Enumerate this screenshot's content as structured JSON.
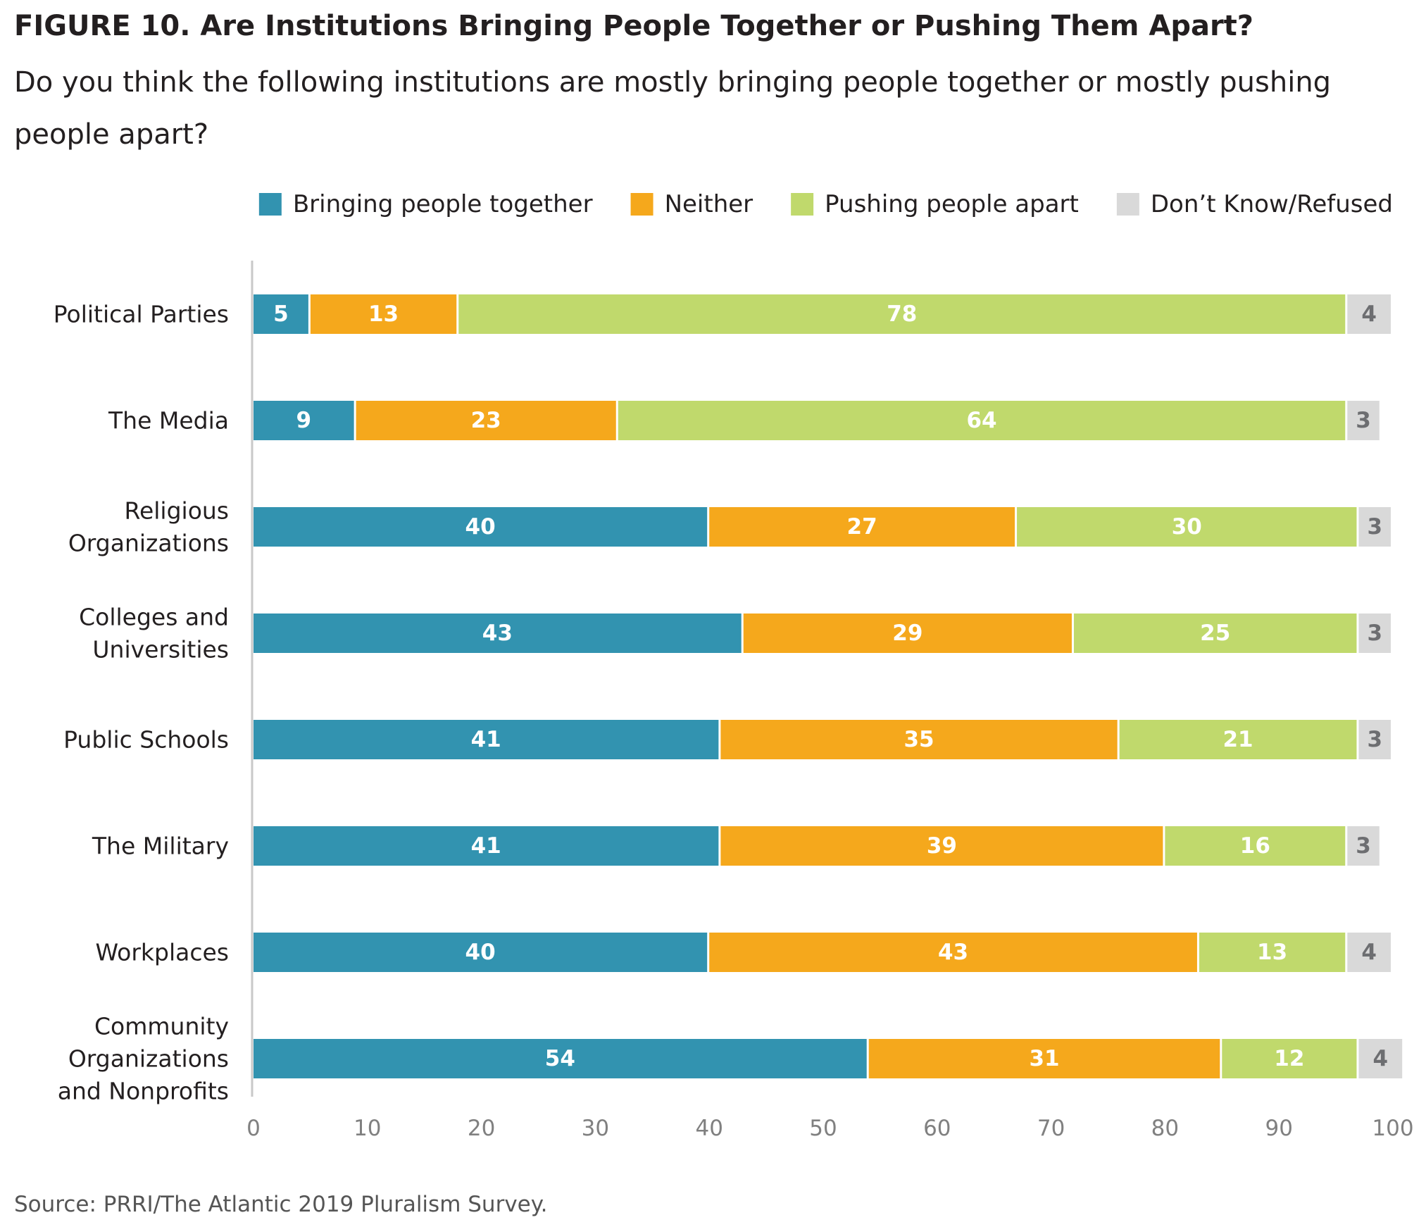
{
  "title": "FIGURE 10. Are Institutions Bringing People Together or Pushing Them Apart?",
  "subtitle": "Do you think the following institutions are mostly bringing people together or mostly pushing people apart?",
  "source": "Source: PRRI/The Atlantic 2019 Pluralism Survey.",
  "chart_data": {
    "type": "bar",
    "orientation": "horizontal",
    "stacked": true,
    "categories": [
      [
        "Political Parties"
      ],
      [
        "The Media"
      ],
      [
        "Religious",
        "Organizations"
      ],
      [
        "Colleges and",
        "Universities"
      ],
      [
        "Public Schools"
      ],
      [
        "The Military"
      ],
      [
        "Workplaces"
      ],
      [
        "Community",
        "Organizations",
        "and Nonprofits"
      ]
    ],
    "series": [
      {
        "name": "Bringing people together",
        "color": "#3293b0",
        "label_color": "#ffffff",
        "values": [
          5,
          9,
          40,
          43,
          41,
          41,
          40,
          54
        ]
      },
      {
        "name": "Neither",
        "color": "#f5a81c",
        "label_color": "#ffffff",
        "values": [
          13,
          23,
          27,
          29,
          35,
          39,
          43,
          31
        ]
      },
      {
        "name": "Pushing people apart",
        "color": "#c0d96c",
        "label_color": "#ffffff",
        "values": [
          78,
          64,
          30,
          25,
          21,
          16,
          13,
          12
        ]
      },
      {
        "name": "Don’t Know/Refused",
        "color": "#d9d9d9",
        "label_color": "#6d6e71",
        "values": [
          4,
          3,
          3,
          3,
          3,
          3,
          4,
          4
        ]
      }
    ],
    "xlim": [
      0,
      100
    ],
    "xticks": [
      0,
      10,
      20,
      30,
      40,
      50,
      60,
      70,
      80,
      90,
      100
    ],
    "grid": false,
    "legend_position": "top-right"
  }
}
